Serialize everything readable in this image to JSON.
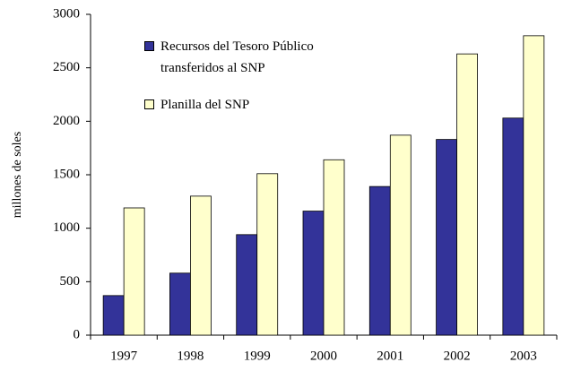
{
  "chart_data": {
    "type": "bar",
    "categories": [
      "1997",
      "1998",
      "1999",
      "2000",
      "2001",
      "2002",
      "2003"
    ],
    "y_label": "millones de soles",
    "series": [
      {
        "name": "Recursos del Tesoro Público transferidos al SNP",
        "color": "#333399",
        "values": [
          370,
          580,
          940,
          1160,
          1390,
          1830,
          2030
        ]
      },
      {
        "name": "Planilla del SNP",
        "color": "#ffffcc",
        "values": [
          1190,
          1300,
          1510,
          1640,
          1870,
          2630,
          2800
        ]
      }
    ],
    "ylim": [
      0,
      3000
    ],
    "yticks": [
      0,
      500,
      1000,
      1500,
      2000,
      2500,
      3000
    ],
    "grid": false,
    "legend": "upper-left"
  }
}
